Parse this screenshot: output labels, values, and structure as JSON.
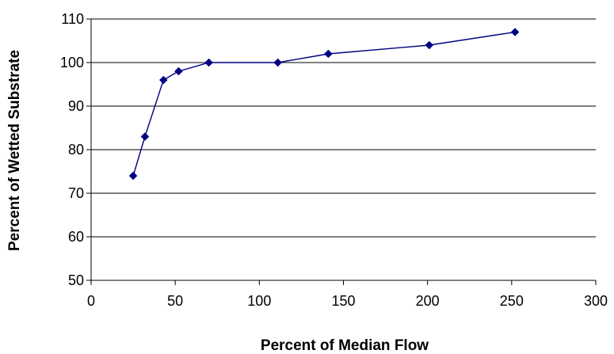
{
  "chart_data": {
    "type": "line",
    "title": "",
    "xlabel": "Percent of Median Flow",
    "ylabel": "Percent of Wetted Substrate",
    "xlim": [
      0,
      300
    ],
    "ylim": [
      50,
      110
    ],
    "x_ticks": [
      0,
      50,
      100,
      150,
      200,
      250,
      300
    ],
    "y_ticks": [
      50,
      60,
      70,
      80,
      90,
      100,
      110
    ],
    "grid": "horizontal",
    "legend": "none",
    "series": [
      {
        "color": "#000080",
        "marker": "diamond",
        "points": [
          {
            "x": 25,
            "y": 74
          },
          {
            "x": 32,
            "y": 83
          },
          {
            "x": 43,
            "y": 96
          },
          {
            "x": 52,
            "y": 98
          },
          {
            "x": 70,
            "y": 100
          },
          {
            "x": 111,
            "y": 100
          },
          {
            "x": 141,
            "y": 102
          },
          {
            "x": 201,
            "y": 104
          },
          {
            "x": 252,
            "y": 107
          }
        ]
      }
    ]
  }
}
